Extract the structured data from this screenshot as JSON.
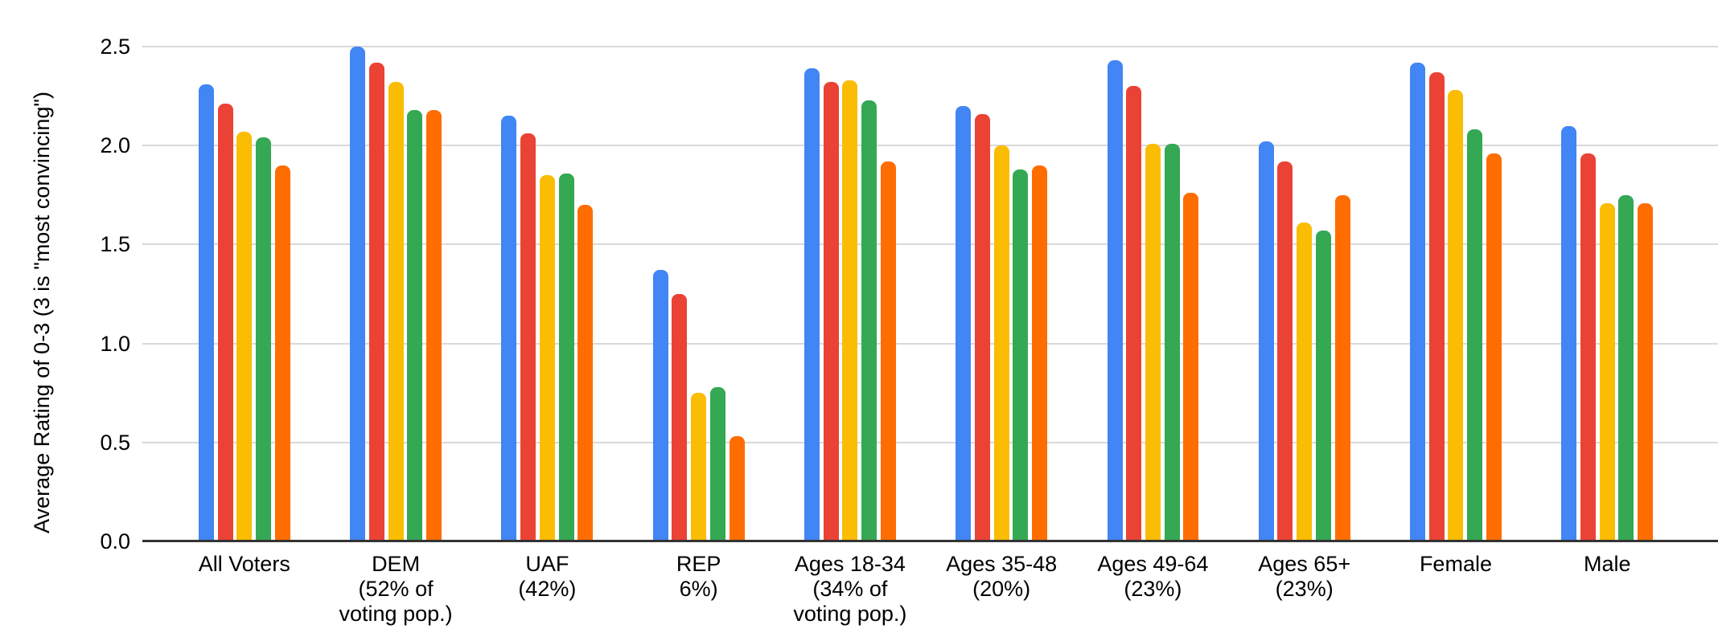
{
  "chart_data": {
    "type": "bar",
    "title": "",
    "xlabel": "",
    "ylabel": "Average Rating of 0-3 (3 is \"most convincing\")",
    "ylim": [
      0,
      2.5
    ],
    "yticks": [
      0,
      0.5,
      1,
      1.5,
      2,
      2.5
    ],
    "ytick_labels": [
      "0.0",
      "0.5",
      "1.0",
      "1.5",
      "2.0",
      "2.5"
    ],
    "grid": "horizontal",
    "legend_position": "none",
    "categories": [
      "All Voters",
      "DEM\n(52% of\nvoting pop.)",
      "UAF\n(42%)",
      "REP\n6%)",
      "Ages 18-34\n(34% of\nvoting pop.)",
      "Ages 35-48\n(20%)",
      "Ages 49-64\n(23%)",
      "Ages 65+\n(23%)",
      "Female",
      "Male"
    ],
    "series": [
      {
        "name": "blue",
        "color": "#4285F4",
        "values": [
          2.31,
          2.5,
          2.15,
          1.37,
          2.39,
          2.2,
          2.43,
          2.02,
          2.42,
          2.1
        ]
      },
      {
        "name": "red",
        "color": "#EA4335",
        "values": [
          2.21,
          2.42,
          2.06,
          1.25,
          2.32,
          2.16,
          2.3,
          1.92,
          2.37,
          1.96
        ]
      },
      {
        "name": "yellow",
        "color": "#FBBC04",
        "values": [
          2.07,
          2.32,
          1.85,
          0.75,
          2.33,
          2.0,
          2.01,
          1.61,
          2.28,
          1.71
        ]
      },
      {
        "name": "green",
        "color": "#34A853",
        "values": [
          2.04,
          2.18,
          1.86,
          0.78,
          2.23,
          1.88,
          2.01,
          1.57,
          2.08,
          1.75
        ]
      },
      {
        "name": "orange",
        "color": "#FF6D01",
        "values": [
          1.9,
          2.18,
          1.7,
          0.53,
          1.92,
          1.9,
          1.76,
          1.75,
          1.96,
          1.71
        ]
      }
    ],
    "axis_colors": {
      "gridline": "#d9d9d9",
      "baseline": "#333333",
      "text": "#000000"
    }
  }
}
